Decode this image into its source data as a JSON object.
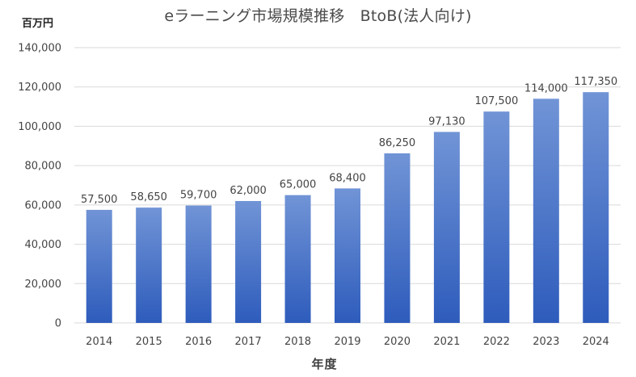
{
  "chart_data": {
    "type": "bar",
    "title": "eラーニング市場規模推移　BtoB(法人向け)",
    "unit_label": "百万円",
    "xlabel": "年度",
    "ylabel": "",
    "categories": [
      "2014",
      "2015",
      "2016",
      "2017",
      "2018",
      "2019",
      "2020",
      "2021",
      "2022",
      "2023",
      "2024"
    ],
    "values": [
      57500,
      58650,
      59700,
      62000,
      65000,
      68400,
      86250,
      97130,
      107500,
      114000,
      117350
    ],
    "value_labels": [
      "57,500",
      "58,650",
      "59,700",
      "62,000",
      "65,000",
      "68,400",
      "86,250",
      "97,130",
      "107,500",
      "114,000",
      "117,350"
    ],
    "ylim": [
      0,
      140000
    ],
    "y_ticks": [
      0,
      20000,
      40000,
      60000,
      80000,
      100000,
      120000,
      140000
    ],
    "y_tick_labels": [
      "0",
      "20,000",
      "40,000",
      "60,000",
      "80,000",
      "100,000",
      "120,000",
      "140,000"
    ],
    "grid": true,
    "legend": "none",
    "colors": {
      "bar_top": "#7194d6",
      "bar_bottom": "#2e5cbc",
      "grid": "#d9d9d9",
      "tick_text": "#444444",
      "data_label_text": "#444444"
    }
  }
}
